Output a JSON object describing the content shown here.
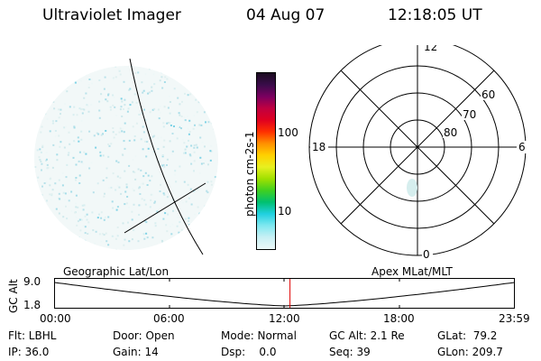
{
  "header": {
    "title": "Ultraviolet Imager",
    "date": "04 Aug 07",
    "time": "12:18:05 UT"
  },
  "colorbar": {
    "unit_label": "photon cm-2s-1",
    "tick_labels": [
      "100",
      "10"
    ],
    "colors": [
      "#1b0c20",
      "#3a0c4a",
      "#7a0060",
      "#c00040",
      "#e00020",
      "#ff3000",
      "#ff9000",
      "#ffd000",
      "#e8f020",
      "#a0e000",
      "#40d020",
      "#00c070",
      "#20d0e0",
      "#80e8f0",
      "#c8f0f4",
      "#ecf8f8"
    ]
  },
  "polar_plot": {
    "mlt_labels": {
      "top": "12",
      "left": "18",
      "right": "6",
      "bottom": "0"
    },
    "lat_labels": [
      "60",
      "70",
      "80"
    ]
  },
  "track": {
    "left_label": "Geographic Lat/Lon",
    "right_label": "Apex MLat/MLT",
    "y_axis_label": "GC Alt",
    "y_ticks": [
      "9.0",
      "1.8"
    ],
    "x_ticks": [
      "00:00",
      "06:00",
      "12:00",
      "18:00",
      "23:59"
    ],
    "current_time_fraction": 0.512
  },
  "info": {
    "row1": {
      "flt": "Flt: LBHL",
      "door": "Door: Open",
      "mode": "Mode: Normal",
      "gcalt": "GC Alt: 2.1 Re",
      "glat": "GLat:  79.2"
    },
    "row2": {
      "ip": "IP: 36.0",
      "gain": "Gain: 14",
      "dsp": "Dsp:    0.0",
      "seq": "Seq: 39",
      "glon": "GLon: 209.7"
    }
  }
}
